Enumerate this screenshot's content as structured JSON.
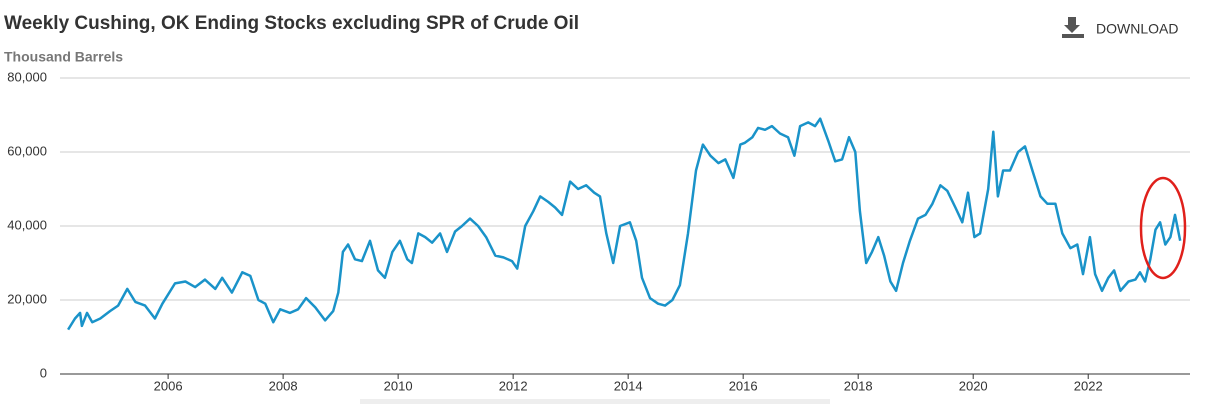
{
  "toolbar": {
    "download": "DOWNLOAD"
  },
  "chart_data": {
    "type": "line",
    "title": "Weekly Cushing, OK Ending Stocks excluding SPR of Crude Oil",
    "y_label": "Thousand Barrels",
    "color": "#1a93c9",
    "grid": true,
    "xlim": [
      2004.12,
      2023.77
    ],
    "xticks": [
      2006,
      2008,
      2010,
      2012,
      2014,
      2016,
      2018,
      2020,
      2022
    ],
    "ylim": [
      0,
      80000
    ],
    "yticks": [
      0,
      {
        "value": 20000,
        "label": "20,000"
      },
      {
        "value": 40000,
        "label": "40,000"
      },
      {
        "value": 60000,
        "label": "60,000"
      },
      {
        "value": 80000,
        "label": "80,000"
      }
    ],
    "x": [
      2004.26,
      2004.38,
      2004.47,
      2004.5,
      2004.59,
      2004.68,
      2004.82,
      2004.99,
      2005.13,
      2005.29,
      2005.43,
      2005.6,
      2005.77,
      2005.9,
      2006.12,
      2006.3,
      2006.47,
      2006.64,
      2006.82,
      2006.94,
      2007.11,
      2007.29,
      2007.43,
      2007.57,
      2007.69,
      2007.83,
      2007.95,
      2008.12,
      2008.26,
      2008.4,
      2008.56,
      2008.73,
      2008.87,
      2008.96,
      2009.04,
      2009.13,
      2009.25,
      2009.37,
      2009.51,
      2009.65,
      2009.77,
      2009.9,
      2010.03,
      2010.16,
      2010.24,
      2010.35,
      2010.47,
      2010.59,
      2010.73,
      2010.85,
      2010.99,
      2011.11,
      2011.25,
      2011.39,
      2011.53,
      2011.69,
      2011.83,
      2011.98,
      2012.07,
      2012.21,
      2012.35,
      2012.47,
      2012.61,
      2012.73,
      2012.85,
      2012.99,
      2013.13,
      2013.27,
      2013.41,
      2013.51,
      2013.62,
      2013.74,
      2013.86,
      2014.03,
      2014.14,
      2014.24,
      2014.38,
      2014.52,
      2014.64,
      2014.77,
      2014.9,
      2015.04,
      2015.18,
      2015.3,
      2015.43,
      2015.57,
      2015.69,
      2015.83,
      2015.95,
      2016.03,
      2016.16,
      2016.26,
      2016.38,
      2016.5,
      2016.64,
      2016.78,
      2016.89,
      2016.99,
      2017.13,
      2017.25,
      2017.34,
      2017.48,
      2017.6,
      2017.72,
      2017.84,
      2017.95,
      2018.03,
      2018.14,
      2018.24,
      2018.35,
      2018.45,
      2018.56,
      2018.66,
      2018.78,
      2018.9,
      2019.04,
      2019.17,
      2019.29,
      2019.43,
      2019.55,
      2019.69,
      2019.81,
      2019.91,
      2020.02,
      2020.12,
      2020.26,
      2020.35,
      2020.43,
      2020.52,
      2020.64,
      2020.78,
      2020.9,
      2021.03,
      2021.17,
      2021.29,
      2021.43,
      2021.55,
      2021.69,
      2021.81,
      2021.91,
      2022.03,
      2022.12,
      2022.24,
      2022.35,
      2022.45,
      2022.56,
      2022.7,
      2022.82,
      2022.9,
      2022.99,
      2023.08,
      2023.17,
      2023.25,
      2023.34,
      2023.43,
      2023.51,
      2023.6
    ],
    "values": [
      12000,
      15000,
      16500,
      13000,
      16500,
      14000,
      15000,
      17000,
      18500,
      23000,
      19500,
      18500,
      15000,
      19000,
      24500,
      25000,
      23500,
      25500,
      23000,
      26000,
      22000,
      27500,
      26500,
      20000,
      19000,
      14000,
      17500,
      16500,
      17500,
      20500,
      18000,
      14500,
      17000,
      22000,
      33000,
      35000,
      31000,
      30500,
      36000,
      28000,
      26000,
      33000,
      36000,
      31000,
      30000,
      38000,
      37000,
      35500,
      38000,
      33000,
      38500,
      40000,
      42000,
      40000,
      37000,
      32000,
      31500,
      30500,
      28500,
      40000,
      44000,
      48000,
      46500,
      45000,
      43000,
      52000,
      50000,
      51000,
      49000,
      48000,
      38000,
      30000,
      40000,
      41000,
      36000,
      26000,
      20500,
      19000,
      18500,
      20000,
      24000,
      38000,
      55000,
      62000,
      59000,
      57000,
      58000,
      53000,
      62000,
      62500,
      64000,
      66500,
      66000,
      67000,
      65000,
      64000,
      59000,
      67000,
      68000,
      67000,
      69000,
      63000,
      57500,
      58000,
      64000,
      60000,
      44000,
      30000,
      33000,
      37000,
      32000,
      25000,
      22500,
      30000,
      36000,
      42000,
      43000,
      46000,
      51000,
      49500,
      45000,
      41000,
      49000,
      37000,
      38000,
      50000,
      65500,
      48000,
      55000,
      55000,
      60000,
      61500,
      55000,
      48000,
      46000,
      46000,
      38000,
      34000,
      35000,
      27000,
      37000,
      27000,
      22500,
      26000,
      28000,
      22500,
      25000,
      25500,
      27500,
      25000,
      31000,
      39000,
      41000,
      35000,
      37000,
      43000,
      36000
    ]
  }
}
